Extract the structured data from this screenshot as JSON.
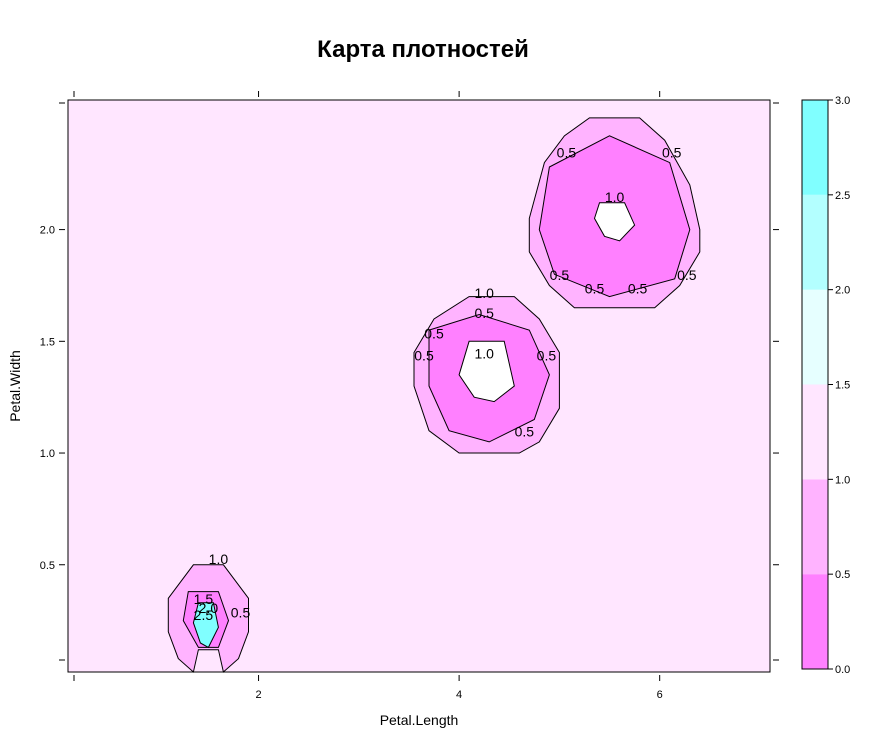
{
  "chart_data": {
    "type": "heatmap",
    "title": "Карта плотностей",
    "xlabel": "Petal.Length",
    "ylabel": "Petal.Width",
    "xlim": [
      0.1,
      7.1
    ],
    "ylim": [
      0.02,
      2.58
    ],
    "x_ticks": [
      {
        "value": 2,
        "label": "2"
      },
      {
        "value": 4,
        "label": "4"
      },
      {
        "value": 6,
        "label": "6"
      }
    ],
    "y_ticks": [
      {
        "value": 0.5,
        "label": "0.5"
      },
      {
        "value": 1.0,
        "label": "1.0"
      },
      {
        "value": 1.5,
        "label": "1.5"
      },
      {
        "value": 2.0,
        "label": "2.0"
      }
    ],
    "colorkey": {
      "ticks": [
        {
          "value": 0.0,
          "label": "0.0"
        },
        {
          "value": 0.5,
          "label": "0.5"
        },
        {
          "value": 1.0,
          "label": "1.0"
        },
        {
          "value": 1.5,
          "label": "1.5"
        },
        {
          "value": 2.0,
          "label": "2.0"
        },
        {
          "value": 2.5,
          "label": "2.5"
        },
        {
          "value": 3.0,
          "label": "3.0"
        }
      ],
      "bands": [
        {
          "from": 0.0,
          "to": 0.5,
          "color": "#ff80ff"
        },
        {
          "from": 0.5,
          "to": 1.0,
          "color": "#ffb3ff"
        },
        {
          "from": 1.0,
          "to": 1.5,
          "color": "#ffe6ff"
        },
        {
          "from": 1.5,
          "to": 2.0,
          "color": "#e6ffff"
        },
        {
          "from": 2.0,
          "to": 2.5,
          "color": "#b3ffff"
        },
        {
          "from": 2.5,
          "to": 3.0,
          "color": "#80ffff"
        }
      ]
    },
    "background_color": "#ffe6ff",
    "cluster_regions": [
      {
        "name": "setosa-cluster",
        "points": [
          [
            1.35,
            0.5
          ],
          [
            1.65,
            0.5
          ],
          [
            1.9,
            0.35
          ],
          [
            1.9,
            0.2
          ],
          [
            1.8,
            0.08
          ],
          [
            1.65,
            0.02
          ],
          [
            1.6,
            0.12
          ],
          [
            1.4,
            0.12
          ],
          [
            1.35,
            0.02
          ],
          [
            1.2,
            0.08
          ],
          [
            1.1,
            0.2
          ],
          [
            1.1,
            0.35
          ]
        ]
      },
      {
        "name": "versicolor-cluster",
        "points": [
          [
            4.1,
            1.7
          ],
          [
            4.55,
            1.7
          ],
          [
            4.8,
            1.6
          ],
          [
            5.0,
            1.45
          ],
          [
            5.0,
            1.2
          ],
          [
            4.8,
            1.05
          ],
          [
            4.6,
            1.0
          ],
          [
            4.0,
            1.0
          ],
          [
            3.7,
            1.1
          ],
          [
            3.55,
            1.3
          ],
          [
            3.55,
            1.45
          ],
          [
            3.75,
            1.6
          ]
        ]
      },
      {
        "name": "virginica-cluster",
        "points": [
          [
            5.3,
            2.5
          ],
          [
            5.8,
            2.5
          ],
          [
            6.05,
            2.4
          ],
          [
            6.3,
            2.2
          ],
          [
            6.4,
            2.0
          ],
          [
            6.4,
            1.9
          ],
          [
            6.2,
            1.75
          ],
          [
            5.95,
            1.65
          ],
          [
            5.15,
            1.65
          ],
          [
            4.9,
            1.75
          ],
          [
            4.7,
            1.9
          ],
          [
            4.7,
            2.05
          ],
          [
            4.85,
            2.3
          ],
          [
            5.05,
            2.42
          ]
        ]
      }
    ],
    "dense_regions": [
      {
        "name": "setosa-ring",
        "points": [
          [
            1.3,
            0.38
          ],
          [
            1.6,
            0.38
          ],
          [
            1.7,
            0.25
          ],
          [
            1.6,
            0.13
          ],
          [
            1.4,
            0.13
          ],
          [
            1.25,
            0.25
          ]
        ]
      },
      {
        "name": "versicolor-ring",
        "points": [
          [
            3.7,
            1.55
          ],
          [
            4.2,
            1.62
          ],
          [
            4.7,
            1.55
          ],
          [
            4.9,
            1.35
          ],
          [
            4.75,
            1.15
          ],
          [
            4.3,
            1.05
          ],
          [
            3.9,
            1.1
          ],
          [
            3.7,
            1.3
          ]
        ]
      },
      {
        "name": "virginica-ring",
        "points": [
          [
            4.9,
            2.28
          ],
          [
            5.5,
            2.42
          ],
          [
            6.1,
            2.3
          ],
          [
            6.3,
            2.0
          ],
          [
            6.15,
            1.78
          ],
          [
            5.5,
            1.7
          ],
          [
            4.95,
            1.8
          ],
          [
            4.8,
            2.0
          ]
        ]
      }
    ],
    "peak_regions": [
      {
        "name": "setosa-peak",
        "color": "#80ffff",
        "points": [
          [
            1.4,
            0.33
          ],
          [
            1.55,
            0.33
          ],
          [
            1.6,
            0.22
          ],
          [
            1.5,
            0.13
          ],
          [
            1.42,
            0.15
          ],
          [
            1.35,
            0.24
          ]
        ]
      }
    ],
    "holes": [
      {
        "name": "versicolor-hole",
        "points": [
          [
            4.1,
            1.5
          ],
          [
            4.45,
            1.5
          ],
          [
            4.55,
            1.3
          ],
          [
            4.35,
            1.23
          ],
          [
            4.15,
            1.25
          ],
          [
            4.0,
            1.35
          ]
        ]
      },
      {
        "name": "virginica-hole",
        "points": [
          [
            5.4,
            2.12
          ],
          [
            5.65,
            2.12
          ],
          [
            5.75,
            2.02
          ],
          [
            5.6,
            1.95
          ],
          [
            5.45,
            1.97
          ],
          [
            5.35,
            2.05
          ]
        ]
      }
    ],
    "contour_labels": [
      {
        "text": "1.0",
        "x": 1.6,
        "y": 0.52
      },
      {
        "text": "1.5",
        "x": 1.45,
        "y": 0.34
      },
      {
        "text": "2.0",
        "x": 1.5,
        "y": 0.3
      },
      {
        "text": "2.5",
        "x": 1.45,
        "y": 0.27
      },
      {
        "text": "0.5",
        "x": 1.82,
        "y": 0.28
      },
      {
        "text": "1.0",
        "x": 4.25,
        "y": 1.71
      },
      {
        "text": "0.5",
        "x": 4.25,
        "y": 1.62
      },
      {
        "text": "0.5",
        "x": 3.75,
        "y": 1.53
      },
      {
        "text": "0.5",
        "x": 3.65,
        "y": 1.43
      },
      {
        "text": "1.0",
        "x": 4.25,
        "y": 1.44
      },
      {
        "text": "0.5",
        "x": 4.87,
        "y": 1.43
      },
      {
        "text": "0.5",
        "x": 4.65,
        "y": 1.09
      },
      {
        "text": "0.5",
        "x": 5.07,
        "y": 2.34
      },
      {
        "text": "0.5",
        "x": 6.12,
        "y": 2.34
      },
      {
        "text": "1.0",
        "x": 5.55,
        "y": 2.14
      },
      {
        "text": "0.5",
        "x": 5.0,
        "y": 1.79
      },
      {
        "text": "0.5",
        "x": 5.35,
        "y": 1.73
      },
      {
        "text": "0.5",
        "x": 5.78,
        "y": 1.73
      },
      {
        "text": "0.5",
        "x": 6.27,
        "y": 1.79
      }
    ]
  }
}
